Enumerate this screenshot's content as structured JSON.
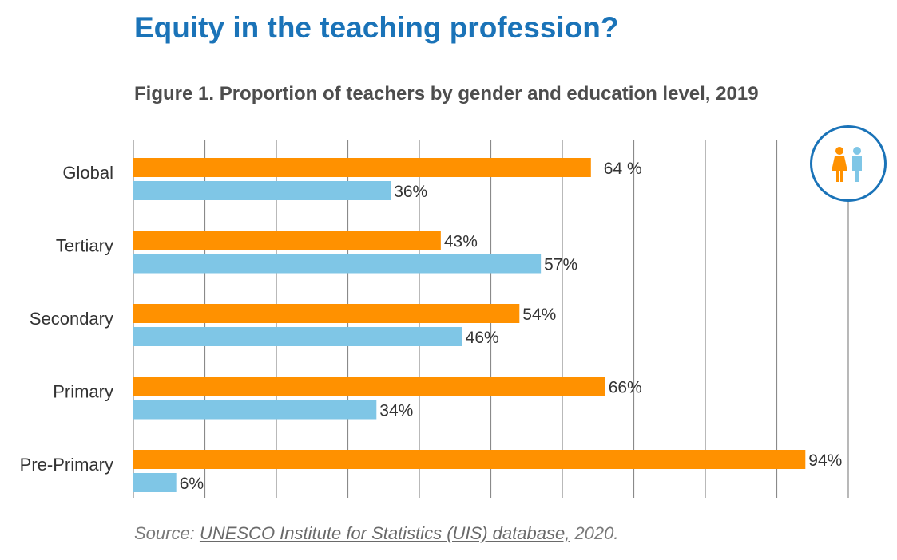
{
  "header": {
    "title": "Equity in the teaching profession?",
    "subtitle": "Figure 1. Proportion of teachers by gender and education level, 2019"
  },
  "chart_data": {
    "type": "bar",
    "orientation": "horizontal",
    "categories": [
      "Global",
      "Tertiary",
      "Secondary",
      "Primary",
      "Pre-Primary"
    ],
    "series": [
      {
        "color": "#ff9100",
        "values": [
          64,
          43,
          54,
          66,
          94
        ],
        "labels": [
          "64 %",
          "43%",
          "54%",
          "66%",
          "94%"
        ]
      },
      {
        "color": "#7fc6e6",
        "values": [
          36,
          57,
          46,
          34,
          6
        ],
        "labels": [
          "36%",
          "57%",
          "46%",
          "34%",
          "6%"
        ]
      }
    ],
    "xlim": [
      0,
      100
    ],
    "grid": true,
    "legend": "none"
  },
  "source": {
    "prefix": "Source: ",
    "link_text": "UNESCO Institute for Statistics (UIS) database,",
    "suffix": " 2020."
  },
  "icon": {
    "name": "female-male-teachers-icon",
    "female_color": "#ff9100",
    "male_color": "#7fc6e6",
    "ring_color": "#1a73b8"
  }
}
